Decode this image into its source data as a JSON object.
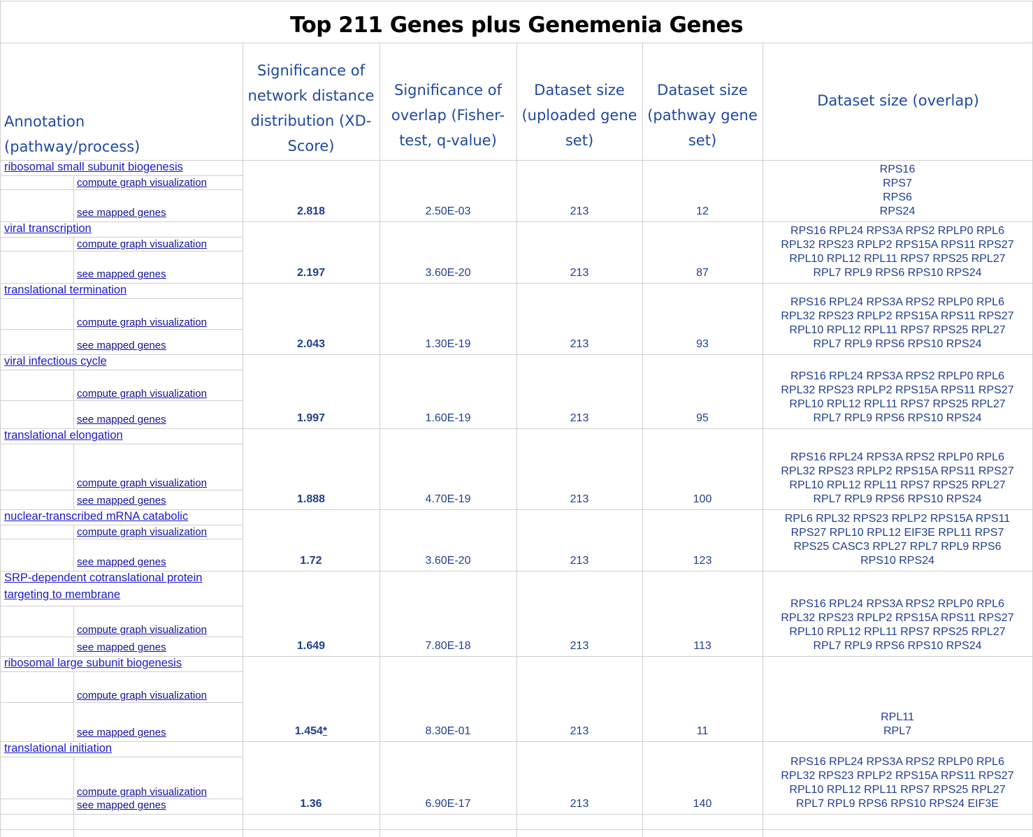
{
  "title": "Top 211 Genes plus Genemenia Genes",
  "headers": {
    "annotation": "Annotation (pathway/process)",
    "xd_score": "Significance of network distance distribution (XD-Score)",
    "q_value": "Significance of overlap (Fisher-test, q-value)",
    "uploaded": "Dataset size (uploaded gene set)",
    "pathway": "Dataset size (pathway gene set)",
    "overlap": "Dataset size (overlap)"
  },
  "links": {
    "compute": "compute graph visualization",
    "mapped": "see mapped genes"
  },
  "rows": [
    {
      "annotation": "ribosomal small subunit biogenesis",
      "annotation_line2": "",
      "xd": "2.818",
      "star": "",
      "q": "2.50E-03",
      "uploaded": "213",
      "pathway": "12",
      "genes": "RPS16\nRPS7\nRPS6\nRPS24"
    },
    {
      "annotation": "viral transcription",
      "annotation_line2": "",
      "xd": "2.197",
      "star": "",
      "q": "3.60E-20",
      "uploaded": "213",
      "pathway": "87",
      "genes": "RPS16 RPL24 RPS3A RPS2 RPLP0 RPL6\nRPL32 RPS23 RPLP2 RPS15A RPS11 RPS27\nRPL10 RPL12 RPL11 RPS7 RPS25 RPL27\nRPL7 RPL9 RPS6 RPS10 RPS24"
    },
    {
      "annotation": "translational termination",
      "annotation_line2": "",
      "xd": "2.043",
      "star": "",
      "q": "1.30E-19",
      "uploaded": "213",
      "pathway": "93",
      "genes": "RPS16 RPL24 RPS3A RPS2 RPLP0 RPL6\nRPL32 RPS23 RPLP2 RPS15A RPS11 RPS27\nRPL10 RPL12 RPL11 RPS7 RPS25 RPL27\nRPL7 RPL9 RPS6 RPS10 RPS24"
    },
    {
      "annotation": "viral infectious cycle",
      "annotation_line2": "",
      "xd": "1.997",
      "star": "",
      "q": "1.60E-19",
      "uploaded": "213",
      "pathway": "95",
      "genes": "RPS16 RPL24 RPS3A RPS2 RPLP0 RPL6\nRPL32 RPS23 RPLP2 RPS15A RPS11 RPS27\nRPL10 RPL12 RPL11 RPS7 RPS25 RPL27\nRPL7 RPL9 RPS6 RPS10 RPS24"
    },
    {
      "annotation": "translational elongation",
      "annotation_line2": "",
      "xd": "1.888",
      "star": "",
      "q": "4.70E-19",
      "uploaded": "213",
      "pathway": "100",
      "genes": "RPS16 RPL24 RPS3A RPS2 RPLP0 RPL6\nRPL32 RPS23 RPLP2 RPS15A RPS11 RPS27\nRPL10 RPL12 RPL11 RPS7 RPS25 RPL27\nRPL7 RPL9 RPS6 RPS10 RPS24"
    },
    {
      "annotation": "nuclear-transcribed mRNA catabolic ",
      "annotation_line2": "",
      "xd": "1.72",
      "star": "",
      "q": "3.60E-20",
      "uploaded": "213",
      "pathway": "123",
      "genes": "RPL6 RPL32 RPS23 RPLP2 RPS15A RPS11\nRPS27 RPL10 RPL12 EIF3E RPL11 RPS7\nRPS25 CASC3 RPL27 RPL7 RPL9 RPS6\nRPS10 RPS24"
    },
    {
      "annotation": "SRP-dependent cotranslational protein ",
      "annotation_line2": "targeting to membrane",
      "xd": "1.649",
      "star": "",
      "q": "7.80E-18",
      "uploaded": "213",
      "pathway": "113",
      "genes": "RPS16 RPL24 RPS3A RPS2 RPLP0 RPL6\nRPL32 RPS23 RPLP2 RPS15A RPS11 RPS27\nRPL10 RPL12 RPL11 RPS7 RPS25 RPL27\nRPL7 RPL9 RPS6 RPS10 RPS24"
    },
    {
      "annotation": "ribosomal large subunit biogenesis",
      "annotation_line2": "",
      "xd": "1.454",
      "star": "*",
      "q": "8.30E-01",
      "uploaded": "213",
      "pathway": "11",
      "genes": "RPL11\nRPL7"
    },
    {
      "annotation": "translational initiation",
      "annotation_line2": "",
      "xd": "1.36",
      "star": "",
      "q": "6.90E-17",
      "uploaded": "213",
      "pathway": "140",
      "genes": "RPS16 RPL24 RPS3A RPS2 RPLP0 RPL6\nRPL32 RPS23 RPLP2 RPS15A RPS11 RPS27\nRPL10 RPL12 RPL11 RPS7 RPS25 RPL27\nRPL7 RPL9 RPS6 RPS10 RPS24 EIF3E"
    }
  ]
}
